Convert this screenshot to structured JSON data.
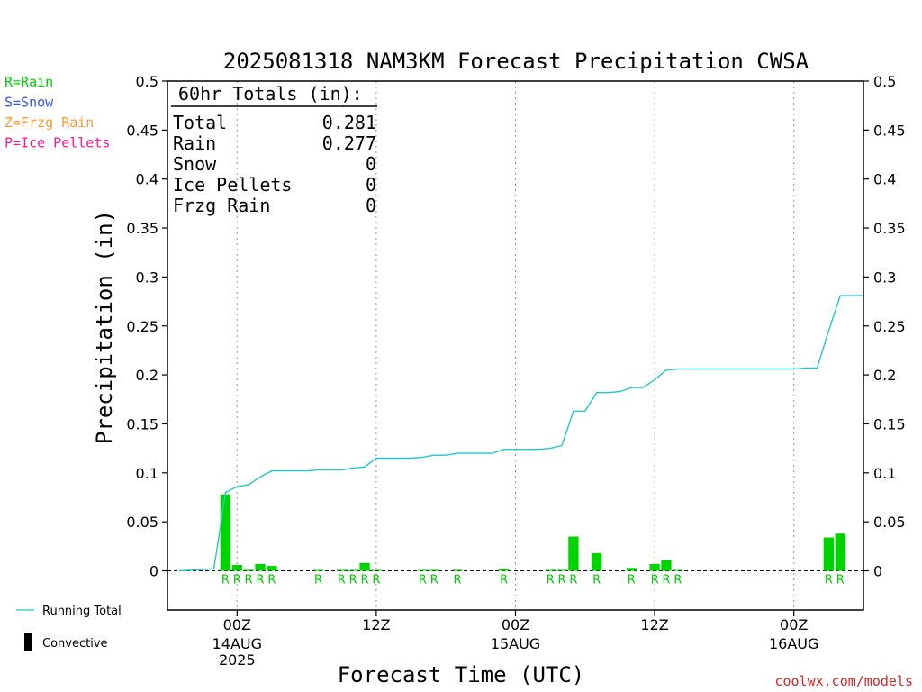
{
  "chart_data": {
    "type": "bar",
    "title": "2025081318 NAM3KM Forecast Precipitation CWSA",
    "xlabel": "Forecast Time (UTC)",
    "ylabel": "Precipitation (in)",
    "ylim": [
      -0.04,
      0.5
    ],
    "xlim": [
      -6,
      54
    ],
    "y_ticks": [
      "0",
      "0.05",
      "0.1",
      "0.15",
      "0.2",
      "0.25",
      "0.3",
      "0.35",
      "0.4",
      "0.45",
      "0.5"
    ],
    "y_tick_values": [
      0,
      0.05,
      0.1,
      0.15,
      0.2,
      0.25,
      0.3,
      0.35,
      0.4,
      0.45,
      0.5
    ],
    "x_ticks": [
      {
        "hour": 0,
        "label": "00Z",
        "sub1": "14AUG",
        "sub2": "2025"
      },
      {
        "hour": 12,
        "label": "12Z",
        "sub1": "",
        "sub2": ""
      },
      {
        "hour": 24,
        "label": "00Z",
        "sub1": "15AUG",
        "sub2": ""
      },
      {
        "hour": 36,
        "label": "12Z",
        "sub1": "",
        "sub2": ""
      },
      {
        "hour": 48,
        "label": "00Z",
        "sub1": "16AUG",
        "sub2": ""
      }
    ],
    "totals_box": {
      "heading": "60hr Totals (in):",
      "rows": [
        {
          "label": "Total",
          "value": "0.281"
        },
        {
          "label": "Rain",
          "value": "0.277"
        },
        {
          "label": "Snow",
          "value": "0"
        },
        {
          "label": "Ice Pellets",
          "value": "0"
        },
        {
          "label": "Frzg Rain",
          "value": "0"
        }
      ]
    },
    "type_legend": [
      {
        "text": "R=Rain",
        "color": "#00cc00"
      },
      {
        "text": "S=Snow",
        "color": "#3355ff"
      },
      {
        "text": "Z=Frzg Rain",
        "color": "#ff9933"
      },
      {
        "text": "P=Ice Pellets",
        "color": "#ff1493"
      }
    ],
    "series_legend": {
      "running_total": "Running Total",
      "convective": "Convective"
    },
    "watermark": "coolwx.com/models",
    "hourly_bars": [
      {
        "hour": -1,
        "value": 0.078,
        "type": "R"
      },
      {
        "hour": 0,
        "value": 0.006,
        "type": "R"
      },
      {
        "hour": 1,
        "value": 0.001,
        "type": "R"
      },
      {
        "hour": 2,
        "value": 0.007,
        "type": "R"
      },
      {
        "hour": 3,
        "value": 0.005,
        "type": "R"
      },
      {
        "hour": 7,
        "value": 0.0005,
        "type": "R"
      },
      {
        "hour": 9,
        "value": 0.001,
        "type": "R"
      },
      {
        "hour": 10,
        "value": 0.0005,
        "type": "R"
      },
      {
        "hour": 11,
        "value": 0.008,
        "type": "R"
      },
      {
        "hour": 12,
        "value": 0.0005,
        "type": "R"
      },
      {
        "hour": 16,
        "value": 0.0005,
        "type": "R"
      },
      {
        "hour": 17,
        "value": 0.001,
        "type": "R"
      },
      {
        "hour": 19,
        "value": 0.001,
        "type": "R"
      },
      {
        "hour": 23,
        "value": 0.002,
        "type": "R"
      },
      {
        "hour": 27,
        "value": 0.001,
        "type": "R"
      },
      {
        "hour": 28,
        "value": 0.001,
        "type": "R"
      },
      {
        "hour": 29,
        "value": 0.035,
        "type": "R"
      },
      {
        "hour": 31,
        "value": 0.018,
        "type": "R"
      },
      {
        "hour": 34,
        "value": 0.003,
        "type": "R"
      },
      {
        "hour": 36,
        "value": 0.007,
        "type": "R"
      },
      {
        "hour": 37,
        "value": 0.011,
        "type": "R"
      },
      {
        "hour": 38,
        "value": 0.0005,
        "type": "R"
      },
      {
        "hour": 51,
        "value": 0.034,
        "type": "R"
      },
      {
        "hour": 52,
        "value": 0.038,
        "type": "R"
      }
    ],
    "running_total": {
      "x": [
        -5,
        -2,
        -1.5,
        -1,
        0,
        1,
        2,
        3,
        4,
        5,
        6,
        7,
        8,
        9,
        10,
        11,
        12,
        13,
        14,
        15,
        16,
        17,
        18,
        19,
        20,
        21,
        22,
        23,
        24,
        25,
        26,
        27,
        28,
        29,
        30,
        31,
        32,
        33,
        34,
        35,
        36,
        37,
        38,
        39,
        40,
        41,
        42,
        43,
        44,
        45,
        46,
        47,
        48,
        49,
        50,
        51,
        52,
        53,
        54
      ],
      "y": [
        0,
        0.002,
        0.04,
        0.08,
        0.086,
        0.088,
        0.096,
        0.102,
        0.102,
        0.102,
        0.102,
        0.103,
        0.103,
        0.103,
        0.105,
        0.106,
        0.115,
        0.115,
        0.115,
        0.115,
        0.116,
        0.118,
        0.118,
        0.12,
        0.12,
        0.12,
        0.12,
        0.124,
        0.124,
        0.124,
        0.124,
        0.125,
        0.128,
        0.163,
        0.163,
        0.182,
        0.182,
        0.183,
        0.187,
        0.187,
        0.195,
        0.205,
        0.206,
        0.206,
        0.206,
        0.206,
        0.206,
        0.206,
        0.206,
        0.206,
        0.206,
        0.206,
        0.206,
        0.207,
        0.207,
        0.245,
        0.281,
        0.281,
        0.281
      ]
    }
  }
}
